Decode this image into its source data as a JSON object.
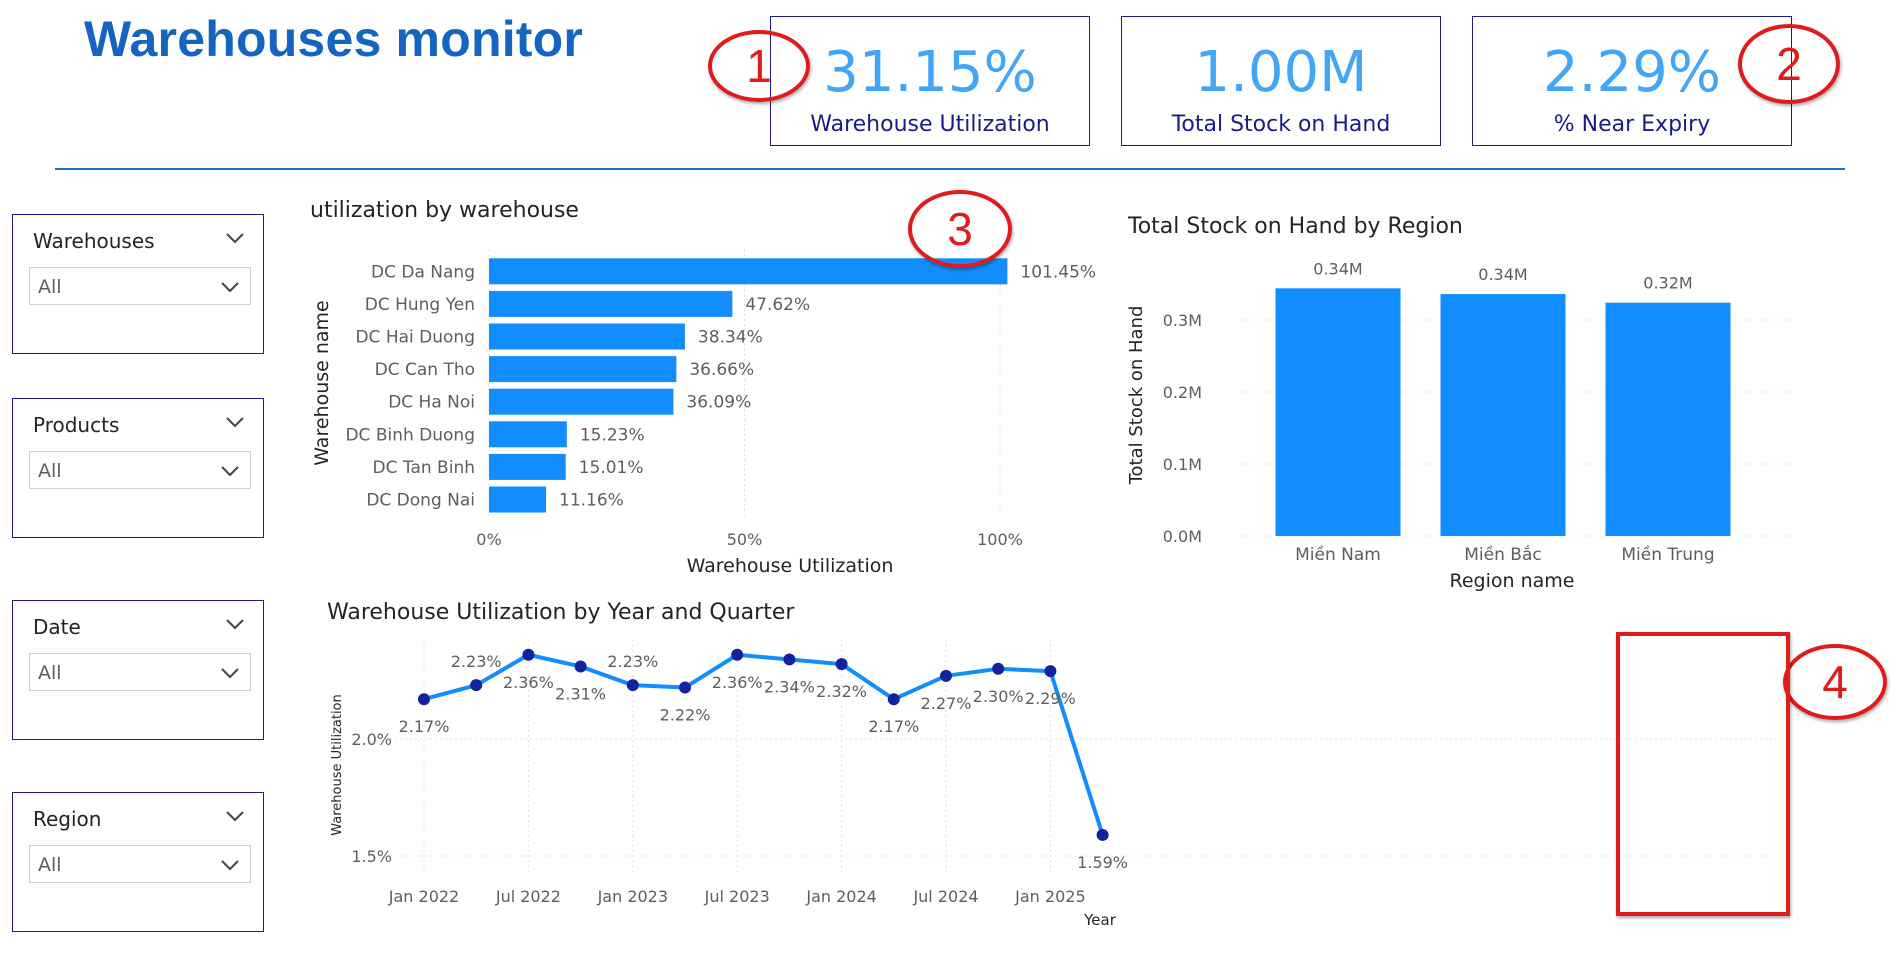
{
  "page": {
    "title": "Warehouses monitor"
  },
  "kpis": [
    {
      "value": "31.15%",
      "label": "Warehouse Utilization"
    },
    {
      "value": "1.00M",
      "label": "Total Stock on Hand"
    },
    {
      "value": "2.29%",
      "label": "% Near Expiry"
    }
  ],
  "slicers": [
    {
      "title": "Warehouses",
      "value": "All"
    },
    {
      "title": "Products",
      "value": "All"
    },
    {
      "title": "Date",
      "value": "All"
    },
    {
      "title": "Region",
      "value": "All"
    }
  ],
  "annotations": [
    "1",
    "2",
    "3",
    "4"
  ],
  "colors": {
    "accent": "#1565C0",
    "bar": "#118DFF",
    "kpi_value": "#42A5F5",
    "border": "#1a1a8c",
    "annotation": "#e01b1b",
    "line_marker": "#12239E"
  },
  "chart_data": [
    {
      "type": "bar",
      "orientation": "horizontal",
      "title": "utilization by warehouse",
      "xlabel": "Warehouse Utilization",
      "ylabel": "Warehouse name",
      "categories": [
        "DC Da Nang",
        "DC Hung Yen",
        "DC Hai Duong",
        "DC Can Tho",
        "DC Ha Noi",
        "DC Binh Duong",
        "DC Tan Binh",
        "DC Dong Nai"
      ],
      "values": [
        101.45,
        47.62,
        38.34,
        36.66,
        36.09,
        15.23,
        15.01,
        11.16
      ],
      "data_labels": [
        "101.45%",
        "47.62%",
        "38.34%",
        "36.66%",
        "36.09%",
        "15.23%",
        "15.01%",
        "11.16%"
      ],
      "xlim": [
        0,
        100
      ],
      "xticks": [
        0,
        50,
        100
      ],
      "xtick_labels": [
        "0%",
        "50%",
        "100%"
      ],
      "grid": true
    },
    {
      "type": "bar",
      "orientation": "vertical",
      "title": "Total Stock on Hand by Region",
      "xlabel": "Region name",
      "ylabel": "Total Stock on Hand",
      "categories": [
        "Miền Nam",
        "Miền Bắc",
        "Miền Trung"
      ],
      "values": [
        0.344,
        0.336,
        0.324
      ],
      "data_labels": [
        "0.34M",
        "0.34M",
        "0.32M"
      ],
      "ylim": [
        0,
        0.35
      ],
      "yticks": [
        0,
        0.1,
        0.2,
        0.3
      ],
      "ytick_labels": [
        "0.0M",
        "0.1M",
        "0.2M",
        "0.3M"
      ],
      "grid": true
    },
    {
      "type": "line",
      "title": "Warehouse Utilization by Year and Quarter",
      "xlabel": "Year",
      "ylabel": "Warehouse Utilization",
      "x": [
        "2022-Q1",
        "2022-Q2",
        "2022-Q3",
        "2022-Q4",
        "2023-Q1",
        "2023-Q2",
        "2023-Q3",
        "2023-Q4",
        "2024-Q1",
        "2024-Q2",
        "2024-Q3",
        "2024-Q4",
        "2025-Q1",
        "2025-Q2"
      ],
      "values": [
        2.17,
        2.23,
        2.36,
        2.31,
        2.23,
        2.22,
        2.36,
        2.34,
        2.32,
        2.17,
        2.27,
        2.3,
        2.29,
        1.59
      ],
      "data_labels": [
        "2.17%",
        "2.23%",
        "2.36%",
        "2.31%",
        "2.23%",
        "2.22%",
        "2.36%",
        "2.34%",
        "2.32%",
        "2.17%",
        "2.27%",
        "2.30%",
        "2.29%",
        "1.59%"
      ],
      "label_position": [
        "below",
        "above",
        "below",
        "below",
        "above",
        "below",
        "below",
        "below",
        "below",
        "below",
        "below",
        "below",
        "below",
        "below"
      ],
      "ylim": [
        1.4,
        2.45
      ],
      "yticks": [
        1.5,
        2.0
      ],
      "ytick_labels": [
        "1.5%",
        "2.0%"
      ],
      "xtick_positions": [
        0,
        2,
        4,
        6,
        8,
        10,
        12
      ],
      "xtick_labels": [
        "Jan 2022",
        "Jul 2022",
        "Jan 2023",
        "Jul 2023",
        "Jan 2024",
        "Jul 2024",
        "Jan 2025"
      ],
      "grid": true
    }
  ]
}
